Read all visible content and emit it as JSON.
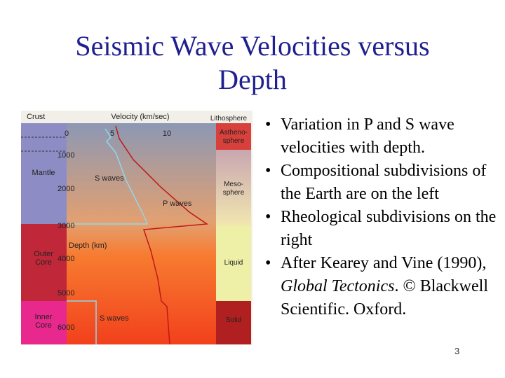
{
  "title_lines": [
    "Seismic Wave Velocities versus",
    "Depth"
  ],
  "figure": {
    "left_header": "Crust",
    "axis_title": "Velocity (km/sec)",
    "right_header": "Lithosphere",
    "velocity_ticks": [
      "0",
      "5",
      "10"
    ],
    "depth_ticks": [
      "1000",
      "2000",
      "3000",
      "4000",
      "5000",
      "6000"
    ],
    "depth_label": "Depth (km)",
    "left_layers": [
      [
        "Mantle"
      ],
      [
        "Outer",
        "Core"
      ],
      [
        "Inner",
        "Core"
      ]
    ],
    "right_layers": [
      [
        "Astheno-",
        "sphere"
      ],
      [
        "Meso-",
        "sphere"
      ],
      [
        "Liquid"
      ],
      [
        "Solid"
      ]
    ],
    "curve_labels": {
      "s_upper": "S waves",
      "p": "P waves",
      "s_lower": "S waves"
    }
  },
  "bullets": [
    [
      "Variation in P and S wave velocities with depth."
    ],
    [
      "Compositional subdivisions of the Earth are on the left"
    ],
    [
      "Rheological subdivisions on the right"
    ],
    [
      "After Kearey and Vine (1990), ",
      "Global Tectonics",
      ". © Blackwell Scientific. Oxford."
    ]
  ],
  "page_number": "3"
}
